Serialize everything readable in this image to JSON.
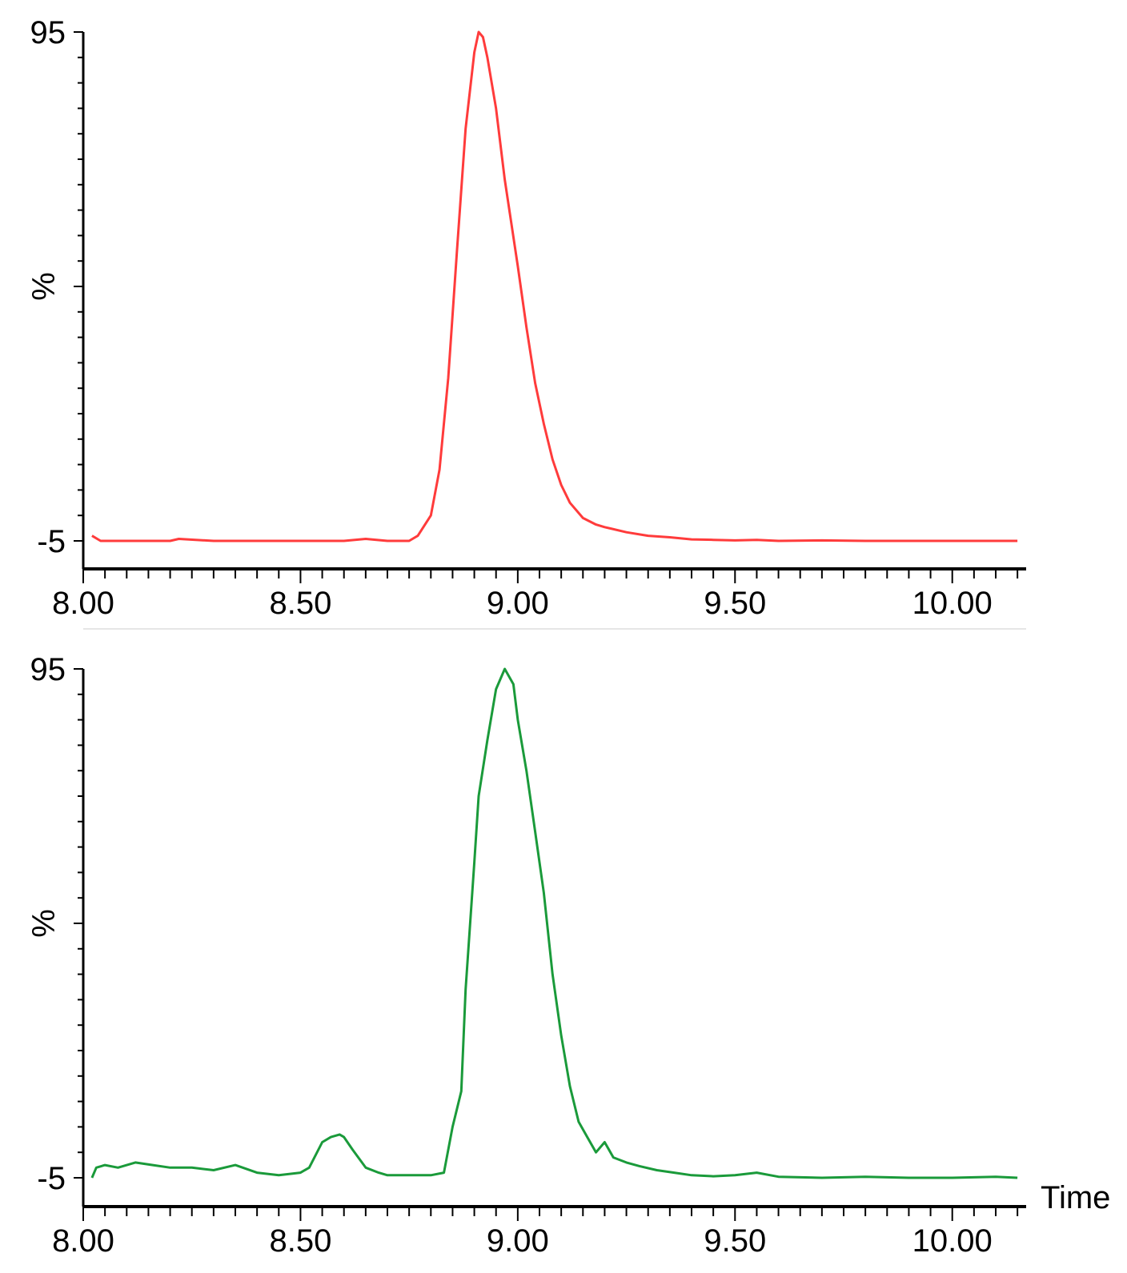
{
  "chart_data": [
    {
      "type": "line",
      "ylabel": "%",
      "xlabel": "",
      "xlim": [
        8.0,
        10.17
      ],
      "ylim": [
        -5,
        95
      ],
      "yticks": [
        95,
        -5
      ],
      "xticks": [
        8.0,
        8.5,
        9.0,
        9.5,
        10.0
      ],
      "xtick_labels": [
        "8.00",
        "8.50",
        "9.00",
        "9.50, ",
        "10.00"
      ],
      "grid": false,
      "color": "#ff3b3b",
      "series": [
        {
          "x": [
            8.02,
            8.04,
            8.1,
            8.2,
            8.22,
            8.3,
            8.4,
            8.5,
            8.6,
            8.65,
            8.7,
            8.75,
            8.77,
            8.8,
            8.82,
            8.84,
            8.86,
            8.88,
            8.9,
            8.91,
            8.92,
            8.93,
            8.95,
            8.97,
            9.0,
            9.02,
            9.04,
            9.06,
            9.08,
            9.1,
            9.12,
            9.15,
            9.18,
            9.2,
            9.25,
            9.3,
            9.35,
            9.4,
            9.45,
            9.5,
            9.55,
            9.6,
            9.7,
            9.8,
            9.9,
            10.0,
            10.1,
            10.15
          ],
          "y": [
            -4,
            -5,
            -5,
            -5,
            -4.6,
            -5,
            -5,
            -5,
            -5,
            -4.6,
            -5,
            -5,
            -4,
            0,
            9,
            27,
            52,
            76,
            91,
            95,
            94,
            90,
            80,
            66,
            49,
            37,
            26,
            18,
            11,
            6,
            2.5,
            -0.5,
            -1.8,
            -2.3,
            -3.3,
            -4,
            -4.3,
            -4.7,
            -4.8,
            -4.9,
            -4.8,
            -5,
            -4.9,
            -5,
            -5,
            -5,
            -5,
            -5
          ]
        }
      ]
    },
    {
      "type": "line",
      "ylabel": "%",
      "xlabel": "Time",
      "xlim": [
        8.0,
        10.17
      ],
      "ylim": [
        -5,
        95
      ],
      "yticks": [
        95,
        -5
      ],
      "xticks": [
        8.0,
        8.5,
        9.0,
        9.5,
        10.0
      ],
      "xtick_labels": [
        "8.00",
        "8.50",
        "9.00",
        "9.50",
        "10.00"
      ],
      "grid": false,
      "color": "#1a9a3a",
      "series": [
        {
          "x": [
            8.02,
            8.03,
            8.05,
            8.08,
            8.12,
            8.16,
            8.2,
            8.25,
            8.3,
            8.35,
            8.4,
            8.45,
            8.5,
            8.52,
            8.55,
            8.57,
            8.59,
            8.6,
            8.62,
            8.65,
            8.68,
            8.7,
            8.75,
            8.8,
            8.83,
            8.85,
            8.87,
            8.88,
            8.9,
            8.91,
            8.93,
            8.95,
            8.97,
            8.99,
            9.0,
            9.02,
            9.04,
            9.06,
            9.08,
            9.1,
            9.12,
            9.14,
            9.16,
            9.18,
            9.2,
            9.22,
            9.25,
            9.28,
            9.32,
            9.36,
            9.4,
            9.45,
            9.5,
            9.55,
            9.6,
            9.7,
            9.8,
            9.9,
            10.0,
            10.1,
            10.15
          ],
          "y": [
            -5,
            -3,
            -2.5,
            -3,
            -2,
            -2.5,
            -3,
            -3,
            -3.5,
            -2.5,
            -4,
            -4.5,
            -4,
            -3,
            2,
            3,
            3.5,
            3,
            0.5,
            -3,
            -4,
            -4.5,
            -4.5,
            -4.5,
            -4,
            5,
            12,
            32,
            57,
            70,
            81,
            91,
            95,
            92,
            85,
            75,
            63,
            51,
            35,
            23,
            13,
            6,
            3,
            0,
            2,
            -1,
            -2,
            -2.7,
            -3.5,
            -4,
            -4.5,
            -4.7,
            -4.5,
            -4,
            -4.8,
            -5,
            -4.8,
            -5,
            -5,
            -4.8,
            -5
          ]
        }
      ]
    }
  ]
}
